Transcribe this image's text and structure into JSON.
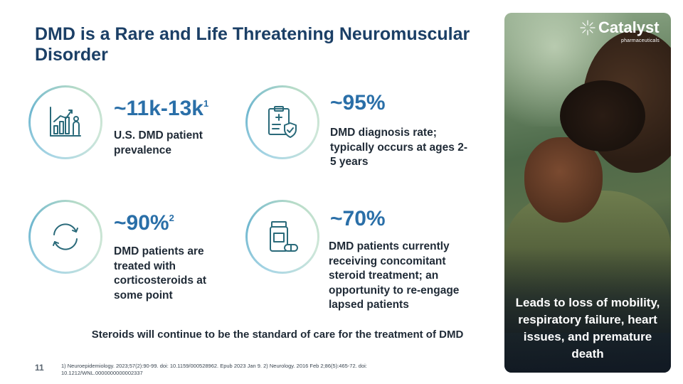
{
  "title": "DMD is a Rare and Life Threatening Neuromuscular Disorder",
  "stats": [
    {
      "value": "~11k-13k",
      "sup": "1",
      "description": "U.S. DMD patient prevalence",
      "icon": "chart-person-icon"
    },
    {
      "value": "~95%",
      "sup": "",
      "description": "DMD diagnosis rate; typically occurs at ages 2-5 years",
      "icon": "clipboard-shield-icon"
    },
    {
      "value": "~90%",
      "sup": "2",
      "description": "DMD patients are treated with corticosteroids at some point",
      "icon": "cycle-arrows-icon"
    },
    {
      "value": "~70%",
      "sup": "",
      "description": "DMD patients currently receiving concomitant steroid treatment; an opportunity to re-engage lapsed patients",
      "icon": "pill-bottle-icon"
    }
  ],
  "tagline": "Steroids will continue to be the standard of care for the treatment of DMD",
  "slide_number": "11",
  "footnote": "1) Neuroepidemiology. 2023;57(2):90-99. doi: 10.1159/000528962. Epub 2023 Jan 9. 2) Neurology. 2016 Feb 2;86(5):465-72. doi: 10.1212/WNL.0000000000002337",
  "logo": {
    "name": "Catalyst",
    "subtitle": "pharmaceuticals"
  },
  "photo_caption": "Leads to loss of mobility, respiratory failure, heart issues, and premature death",
  "colors": {
    "title": "#1b3f66",
    "stat_value": "#2a6fa8",
    "ring": "#6fb7cf",
    "icon": "#2a6a7a"
  }
}
